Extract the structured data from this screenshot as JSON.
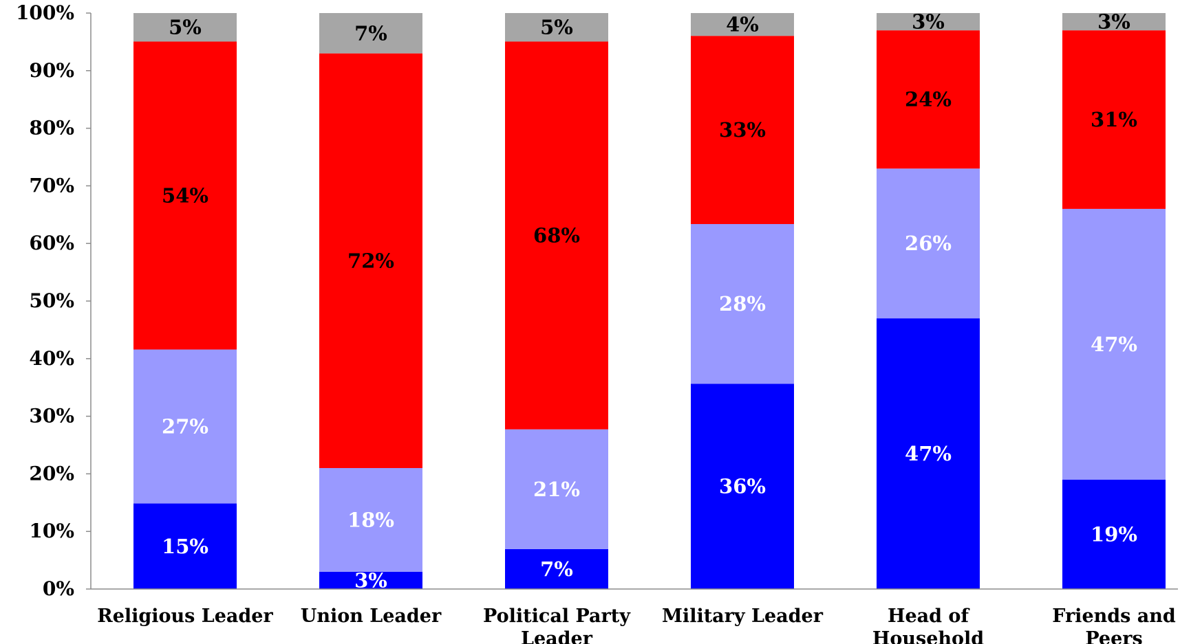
{
  "chart_data": {
    "type": "bar",
    "stacked": true,
    "percent_stacked": true,
    "categories": [
      [
        "Religious Leader"
      ],
      [
        "Union Leader"
      ],
      [
        "Political Party",
        "Leader"
      ],
      [
        "Military Leader"
      ],
      [
        "Head of",
        "Household"
      ],
      [
        "Friends and",
        "Peers"
      ]
    ],
    "series": [
      {
        "color": "#0000FF",
        "label_color": "#FFFFFF",
        "values": [
          15,
          3,
          7,
          36,
          47,
          19
        ],
        "labels": [
          "15%",
          "3%",
          "7%",
          "36%",
          "47%",
          "19%"
        ]
      },
      {
        "color": "#9999FF",
        "label_color": "#FFFFFF",
        "values": [
          27,
          18,
          21,
          28,
          26,
          47
        ],
        "labels": [
          "27%",
          "18%",
          "21%",
          "28%",
          "26%",
          "47%"
        ]
      },
      {
        "color": "#FF0000",
        "label_color": "#000000",
        "values": [
          54,
          72,
          68,
          33,
          24,
          31
        ],
        "labels": [
          "54%",
          "72%",
          "68%",
          "33%",
          "24%",
          "31%"
        ]
      },
      {
        "color": "#A6A6A6",
        "label_color": "#000000",
        "values": [
          5,
          7,
          5,
          4,
          3,
          3
        ],
        "labels": [
          "5%",
          "7%",
          "5%",
          "4%",
          "3%",
          "3%"
        ]
      }
    ],
    "ylim": [
      0,
      100
    ],
    "y_ticks": [
      "0%",
      "10%",
      "20%",
      "30%",
      "40%",
      "50%",
      "60%",
      "70%",
      "80%",
      "90%",
      "100%"
    ],
    "title": "",
    "xlabel": "",
    "ylabel": "",
    "grid": false,
    "legend": "none"
  }
}
